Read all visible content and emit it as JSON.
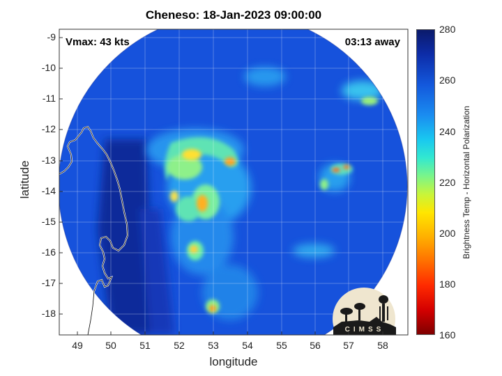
{
  "title": "Cheneso: 18-Jan-2023 09:00:00",
  "annotations": {
    "vmax": "Vmax: 43 kts",
    "time_away": "03:13 away"
  },
  "axes": {
    "x_label": "longitude",
    "y_label": "latitude",
    "x_ticks": [
      "49",
      "50",
      "51",
      "52",
      "53",
      "54",
      "55",
      "56",
      "57",
      "58"
    ],
    "y_ticks": [
      "-9",
      "-10",
      "-11",
      "-12",
      "-13",
      "-14",
      "-15",
      "-16",
      "-17",
      "-18"
    ]
  },
  "colorbar": {
    "label": "Brightness Temp - Horizontal Polarization",
    "ticks": [
      "280",
      "260",
      "240",
      "220",
      "200",
      "180",
      "160"
    ]
  },
  "logo": {
    "text": "CIMSS"
  },
  "colors": {
    "cold_background": "#1a4fd6",
    "warm_core": "#ffd21f",
    "coastline": "#ffffff"
  }
}
